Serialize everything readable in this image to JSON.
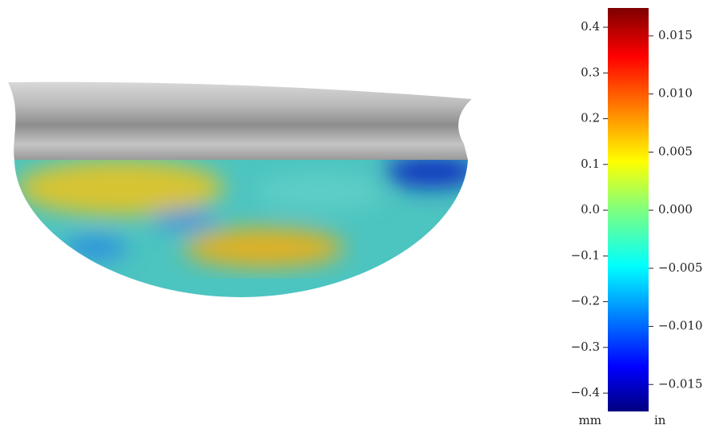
{
  "chart_data": {
    "type": "colorbar",
    "colormap": "jet",
    "ylabel": "mm",
    "y2label": "in",
    "ylim": [
      -0.44,
      0.442
    ],
    "yticks": [
      {
        "value": -0.4,
        "label": "−0.4"
      },
      {
        "value": -0.3,
        "label": "−0.3"
      },
      {
        "value": -0.2,
        "label": "−0.2"
      },
      {
        "value": -0.1,
        "label": "−0.1"
      },
      {
        "value": 0,
        "label": "0.0"
      },
      0.1,
      0.2,
      0.3,
      0.4
    ],
    "y2lim": [
      -0.01732,
      0.0174
    ],
    "y2ticks": [
      {
        "value": -0.015,
        "label": "−0.015"
      },
      {
        "value": -0.01,
        "label": "−0.010"
      },
      {
        "value": -0.005,
        "label": "−0.005"
      },
      {
        "value": 0,
        "label": "0.000"
      },
      0.005,
      {
        "value": 0.01,
        "label": "0.010"
      },
      0.015
    ]
  }
}
